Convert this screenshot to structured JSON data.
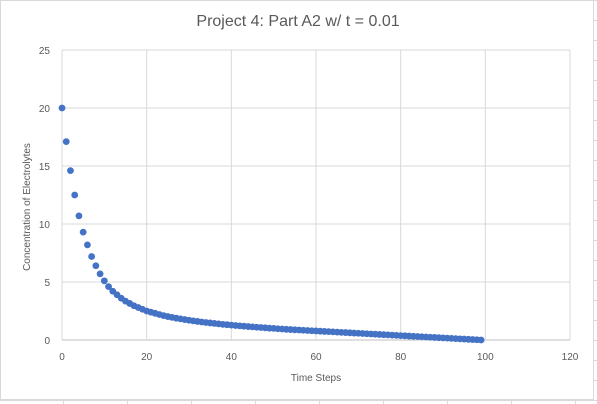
{
  "chart_data": {
    "type": "scatter",
    "title": "Project 4: Part A2 w/ t = 0.01",
    "xlabel": "Time Steps",
    "ylabel": "Concentration of Electrolytes",
    "xlim": [
      0,
      120
    ],
    "ylim": [
      0,
      25
    ],
    "xticks": [
      "0",
      "20",
      "40",
      "60",
      "80",
      "100",
      "120"
    ],
    "yticks": [
      "0",
      "5",
      "10",
      "15",
      "20",
      "25"
    ],
    "grid": true,
    "legend": "none",
    "marker_color": "#4472c4",
    "series": [
      {
        "x": [
          0,
          1,
          2,
          3,
          4,
          5,
          6,
          7,
          8,
          9,
          10,
          11,
          12,
          13,
          14,
          15,
          16,
          17,
          18,
          19,
          20,
          21,
          22,
          23,
          24,
          25,
          26,
          27,
          28,
          29,
          30,
          31,
          32,
          33,
          34,
          35,
          36,
          37,
          38,
          39,
          40,
          41,
          42,
          43,
          44,
          45,
          46,
          47,
          48,
          49,
          50,
          51,
          52,
          53,
          54,
          55,
          56,
          57,
          58,
          59,
          60,
          61,
          62,
          63,
          64,
          65,
          66,
          67,
          68,
          69,
          70,
          71,
          72,
          73,
          74,
          75,
          76,
          77,
          78,
          79,
          80,
          81,
          82,
          83,
          84,
          85,
          86,
          87,
          88,
          89,
          90,
          91,
          92,
          93,
          94,
          95,
          96,
          97,
          98,
          99
        ],
        "y": [
          20.0,
          17.1,
          14.6,
          12.5,
          10.7,
          9.3,
          8.2,
          7.2,
          6.4,
          5.7,
          5.1,
          4.6,
          4.2,
          3.9,
          3.6,
          3.35,
          3.15,
          2.95,
          2.8,
          2.65,
          2.5,
          2.4,
          2.3,
          2.2,
          2.1,
          2.02,
          1.95,
          1.88,
          1.82,
          1.76,
          1.7,
          1.65,
          1.6,
          1.55,
          1.51,
          1.47,
          1.43,
          1.39,
          1.35,
          1.32,
          1.28,
          1.25,
          1.22,
          1.19,
          1.16,
          1.13,
          1.1,
          1.08,
          1.05,
          1.02,
          1.0,
          0.97,
          0.95,
          0.92,
          0.9,
          0.88,
          0.86,
          0.84,
          0.82,
          0.8,
          0.78,
          0.76,
          0.74,
          0.72,
          0.7,
          0.68,
          0.66,
          0.64,
          0.62,
          0.6,
          0.58,
          0.56,
          0.54,
          0.52,
          0.5,
          0.48,
          0.46,
          0.44,
          0.42,
          0.4,
          0.38,
          0.36,
          0.34,
          0.32,
          0.3,
          0.28,
          0.26,
          0.24,
          0.22,
          0.2,
          0.18,
          0.16,
          0.14,
          0.12,
          0.1,
          0.08,
          0.06,
          0.04,
          0.02,
          0.0
        ]
      }
    ]
  }
}
